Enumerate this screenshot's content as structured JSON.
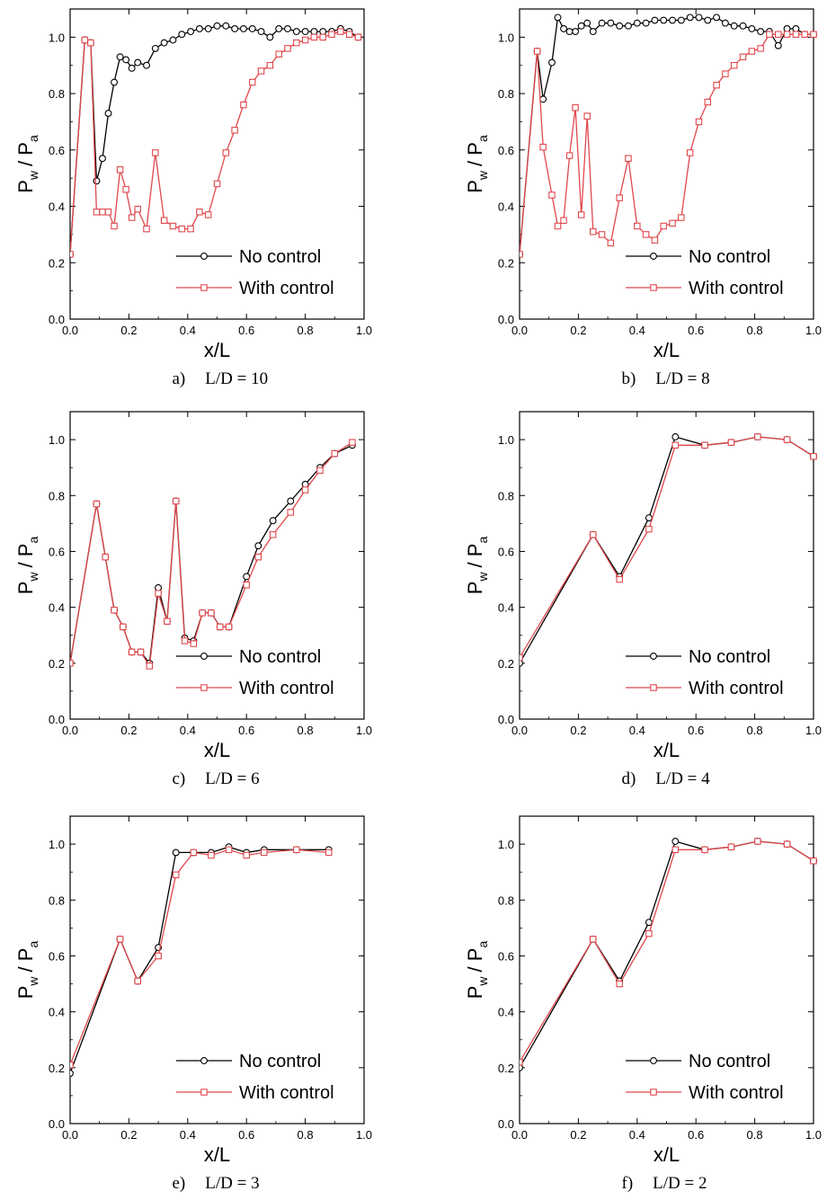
{
  "chart_data": [
    {
      "type": "line",
      "caption_letter": "a)",
      "caption_value": "L/D = 10",
      "xlabel": "x/L",
      "ylabel_main": "P",
      "ylabel_main_sub": "w",
      "ylabel_sep": "/ P",
      "ylabel_den_sub": "a",
      "xlim": [
        0.0,
        1.0
      ],
      "ylim": [
        0.0,
        1.1
      ],
      "xticks": [
        "0.0",
        "0.2",
        "0.4",
        "0.6",
        "0.8",
        "1.0"
      ],
      "yticks": [
        "0.0",
        "0.2",
        "0.4",
        "0.6",
        "0.8",
        "1.0"
      ],
      "legend_position": "bottom-right",
      "series": [
        {
          "name": "No control",
          "color": "#000000",
          "marker": "circle",
          "x": [
            0.0,
            0.05,
            0.07,
            0.09,
            0.11,
            0.13,
            0.15,
            0.17,
            0.19,
            0.21,
            0.23,
            0.26,
            0.29,
            0.32,
            0.35,
            0.38,
            0.41,
            0.44,
            0.47,
            0.5,
            0.53,
            0.56,
            0.59,
            0.62,
            0.65,
            0.68,
            0.71,
            0.74,
            0.77,
            0.8,
            0.83,
            0.86,
            0.89,
            0.92,
            0.95,
            0.98
          ],
          "y": [
            0.23,
            0.99,
            0.98,
            0.49,
            0.57,
            0.73,
            0.84,
            0.93,
            0.92,
            0.89,
            0.91,
            0.9,
            0.96,
            0.98,
            0.99,
            1.01,
            1.02,
            1.03,
            1.03,
            1.04,
            1.04,
            1.03,
            1.03,
            1.03,
            1.02,
            1.0,
            1.03,
            1.03,
            1.02,
            1.02,
            1.02,
            1.02,
            1.02,
            1.03,
            1.02,
            1.0
          ]
        },
        {
          "name": "With control",
          "color": "#e0474c",
          "marker": "square",
          "x": [
            0.0,
            0.05,
            0.07,
            0.09,
            0.11,
            0.13,
            0.15,
            0.17,
            0.19,
            0.21,
            0.23,
            0.26,
            0.29,
            0.32,
            0.35,
            0.38,
            0.41,
            0.44,
            0.47,
            0.5,
            0.53,
            0.56,
            0.59,
            0.62,
            0.65,
            0.68,
            0.71,
            0.74,
            0.77,
            0.8,
            0.83,
            0.86,
            0.89,
            0.92,
            0.95,
            0.98
          ],
          "y": [
            0.23,
            0.99,
            0.98,
            0.38,
            0.38,
            0.38,
            0.33,
            0.53,
            0.46,
            0.36,
            0.39,
            0.32,
            0.59,
            0.35,
            0.33,
            0.32,
            0.32,
            0.38,
            0.37,
            0.48,
            0.59,
            0.67,
            0.76,
            0.84,
            0.88,
            0.9,
            0.94,
            0.96,
            0.98,
            0.99,
            1.0,
            1.0,
            1.01,
            1.02,
            1.01,
            1.0
          ]
        }
      ]
    },
    {
      "type": "line",
      "caption_letter": "b)",
      "caption_value": "L/D = 8",
      "xlabel": "x/L",
      "ylabel_main": "P",
      "ylabel_main_sub": "w",
      "ylabel_sep": "/ P",
      "ylabel_den_sub": "a",
      "xlim": [
        0.0,
        1.0
      ],
      "ylim": [
        0.0,
        1.1
      ],
      "xticks": [
        "0.0",
        "0.2",
        "0.4",
        "0.6",
        "0.8",
        "1.0"
      ],
      "yticks": [
        "0.0",
        "0.2",
        "0.4",
        "0.6",
        "0.8",
        "1.0"
      ],
      "legend_position": "bottom-right",
      "series": [
        {
          "name": "No control",
          "color": "#000000",
          "marker": "circle",
          "x": [
            0.0,
            0.06,
            0.08,
            0.11,
            0.13,
            0.15,
            0.17,
            0.19,
            0.21,
            0.23,
            0.25,
            0.28,
            0.31,
            0.34,
            0.37,
            0.4,
            0.43,
            0.46,
            0.49,
            0.52,
            0.55,
            0.58,
            0.61,
            0.64,
            0.67,
            0.7,
            0.73,
            0.76,
            0.79,
            0.82,
            0.85,
            0.88,
            0.91,
            0.94,
            0.97,
            1.0
          ],
          "y": [
            0.23,
            0.95,
            0.78,
            0.91,
            1.07,
            1.03,
            1.02,
            1.02,
            1.04,
            1.05,
            1.02,
            1.05,
            1.05,
            1.04,
            1.04,
            1.05,
            1.05,
            1.06,
            1.06,
            1.06,
            1.06,
            1.07,
            1.07,
            1.06,
            1.07,
            1.05,
            1.04,
            1.04,
            1.03,
            1.02,
            1.02,
            0.97,
            1.03,
            1.03,
            1.01,
            1.01
          ]
        },
        {
          "name": "With control",
          "color": "#e0474c",
          "marker": "square",
          "x": [
            0.0,
            0.06,
            0.08,
            0.11,
            0.13,
            0.15,
            0.17,
            0.19,
            0.21,
            0.23,
            0.25,
            0.28,
            0.31,
            0.34,
            0.37,
            0.4,
            0.43,
            0.46,
            0.49,
            0.52,
            0.55,
            0.58,
            0.61,
            0.64,
            0.67,
            0.7,
            0.73,
            0.76,
            0.79,
            0.82,
            0.85,
            0.88,
            0.91,
            0.94,
            0.97,
            1.0
          ],
          "y": [
            0.23,
            0.95,
            0.61,
            0.44,
            0.33,
            0.35,
            0.58,
            0.75,
            0.37,
            0.72,
            0.31,
            0.3,
            0.27,
            0.43,
            0.57,
            0.33,
            0.3,
            0.28,
            0.33,
            0.34,
            0.36,
            0.59,
            0.7,
            0.77,
            0.83,
            0.87,
            0.9,
            0.93,
            0.95,
            0.96,
            1.01,
            1.01,
            1.01,
            1.01,
            1.01,
            1.01
          ]
        }
      ]
    },
    {
      "type": "line",
      "caption_letter": "c)",
      "caption_value": "L/D = 6",
      "xlabel": "x/L",
      "ylabel_main": "P",
      "ylabel_main_sub": "w",
      "ylabel_sep": "/ P",
      "ylabel_den_sub": "a",
      "xlim": [
        0.0,
        1.0
      ],
      "ylim": [
        0.0,
        1.1
      ],
      "xticks": [
        "0.0",
        "0.2",
        "0.4",
        "0.6",
        "0.8",
        "1.0"
      ],
      "yticks": [
        "0.0",
        "0.2",
        "0.4",
        "0.6",
        "0.8",
        "1.0"
      ],
      "legend_position": "bottom-right",
      "series": [
        {
          "name": "No control",
          "color": "#000000",
          "marker": "circle",
          "x": [
            0.0,
            0.09,
            0.12,
            0.15,
            0.18,
            0.21,
            0.24,
            0.27,
            0.3,
            0.33,
            0.36,
            0.39,
            0.42,
            0.45,
            0.48,
            0.51,
            0.54,
            0.6,
            0.64,
            0.69,
            0.75,
            0.8,
            0.85,
            0.9,
            0.96
          ],
          "y": [
            0.2,
            0.77,
            0.58,
            0.39,
            0.33,
            0.24,
            0.24,
            0.2,
            0.47,
            0.35,
            0.78,
            0.29,
            0.28,
            0.38,
            0.38,
            0.33,
            0.33,
            0.51,
            0.62,
            0.71,
            0.78,
            0.84,
            0.9,
            0.95,
            0.98
          ]
        },
        {
          "name": "With control",
          "color": "#e0474c",
          "marker": "square",
          "x": [
            0.0,
            0.09,
            0.12,
            0.15,
            0.18,
            0.21,
            0.24,
            0.27,
            0.3,
            0.33,
            0.36,
            0.39,
            0.42,
            0.45,
            0.48,
            0.51,
            0.54,
            0.6,
            0.64,
            0.69,
            0.75,
            0.8,
            0.85,
            0.9,
            0.96
          ],
          "y": [
            0.2,
            0.77,
            0.58,
            0.39,
            0.33,
            0.24,
            0.24,
            0.19,
            0.45,
            0.35,
            0.78,
            0.28,
            0.27,
            0.38,
            0.38,
            0.33,
            0.33,
            0.48,
            0.58,
            0.66,
            0.74,
            0.82,
            0.89,
            0.95,
            0.99
          ]
        }
      ]
    },
    {
      "type": "line",
      "caption_letter": "d)",
      "caption_value": "L/D = 4",
      "xlabel": "x/L",
      "ylabel_main": "P",
      "ylabel_main_sub": "w",
      "ylabel_sep": "/ P",
      "ylabel_den_sub": "a",
      "xlim": [
        0.0,
        1.0
      ],
      "ylim": [
        0.0,
        1.1
      ],
      "xticks": [
        "0.0",
        "0.2",
        "0.4",
        "0.6",
        "0.8",
        "1.0"
      ],
      "yticks": [
        "0.0",
        "0.2",
        "0.4",
        "0.6",
        "0.8",
        "1.0"
      ],
      "legend_position": "bottom-right",
      "series": [
        {
          "name": "No control",
          "color": "#000000",
          "marker": "circle",
          "x": [
            0.0,
            0.25,
            0.34,
            0.44,
            0.53,
            0.63,
            0.72,
            0.81,
            0.91,
            1.0
          ],
          "y": [
            0.2,
            0.66,
            0.51,
            0.72,
            1.01,
            0.98,
            0.99,
            1.01,
            1.0,
            0.94
          ]
        },
        {
          "name": "With control",
          "color": "#e0474c",
          "marker": "square",
          "x": [
            0.0,
            0.25,
            0.34,
            0.44,
            0.53,
            0.63,
            0.72,
            0.81,
            0.91,
            1.0
          ],
          "y": [
            0.22,
            0.66,
            0.5,
            0.68,
            0.98,
            0.98,
            0.99,
            1.01,
            1.0,
            0.94
          ]
        }
      ]
    },
    {
      "type": "line",
      "caption_letter": "e)",
      "caption_value": "L/D = 3",
      "xlabel": "x/L",
      "ylabel_main": "P",
      "ylabel_main_sub": "w",
      "ylabel_sep": "/ P",
      "ylabel_den_sub": "a",
      "xlim": [
        0.0,
        1.0
      ],
      "ylim": [
        0.0,
        1.1
      ],
      "xticks": [
        "0.0",
        "0.2",
        "0.4",
        "0.6",
        "0.8",
        "1.0"
      ],
      "yticks": [
        "0.0",
        "0.2",
        "0.4",
        "0.6",
        "0.8",
        "1.0"
      ],
      "legend_position": "bottom-right",
      "series": [
        {
          "name": "No control",
          "color": "#000000",
          "marker": "circle",
          "x": [
            0.0,
            0.17,
            0.23,
            0.3,
            0.36,
            0.42,
            0.48,
            0.54,
            0.6,
            0.66,
            0.77,
            0.88
          ],
          "y": [
            0.18,
            0.66,
            0.51,
            0.63,
            0.97,
            0.97,
            0.97,
            0.99,
            0.97,
            0.98,
            0.98,
            0.98
          ]
        },
        {
          "name": "With control",
          "color": "#e0474c",
          "marker": "square",
          "x": [
            0.0,
            0.17,
            0.23,
            0.3,
            0.36,
            0.42,
            0.48,
            0.54,
            0.6,
            0.66,
            0.77,
            0.88
          ],
          "y": [
            0.21,
            0.66,
            0.51,
            0.6,
            0.89,
            0.97,
            0.96,
            0.98,
            0.96,
            0.97,
            0.98,
            0.97
          ]
        }
      ]
    },
    {
      "type": "line",
      "caption_letter": "f)",
      "caption_value": "L/D = 2",
      "xlabel": "x/L",
      "ylabel_main": "P",
      "ylabel_main_sub": "w",
      "ylabel_sep": "/ P",
      "ylabel_den_sub": "a",
      "xlim": [
        0.0,
        1.0
      ],
      "ylim": [
        0.0,
        1.1
      ],
      "xticks": [
        "0.0",
        "0.2",
        "0.4",
        "0.6",
        "0.8",
        "1.0"
      ],
      "yticks": [
        "0.0",
        "0.2",
        "0.4",
        "0.6",
        "0.8",
        "1.0"
      ],
      "legend_position": "bottom-right",
      "series": [
        {
          "name": "No control",
          "color": "#000000",
          "marker": "circle",
          "x": [
            0.0,
            0.25,
            0.34,
            0.44,
            0.53,
            0.63,
            0.72,
            0.81,
            0.91,
            1.0
          ],
          "y": [
            0.2,
            0.66,
            0.51,
            0.72,
            1.01,
            0.98,
            0.99,
            1.01,
            1.0,
            0.94
          ]
        },
        {
          "name": "With control",
          "color": "#e0474c",
          "marker": "square",
          "x": [
            0.0,
            0.25,
            0.34,
            0.44,
            0.53,
            0.63,
            0.72,
            0.81,
            0.91,
            1.0
          ],
          "y": [
            0.22,
            0.66,
            0.5,
            0.68,
            0.98,
            0.98,
            0.99,
            1.01,
            1.0,
            0.94
          ]
        }
      ]
    }
  ]
}
